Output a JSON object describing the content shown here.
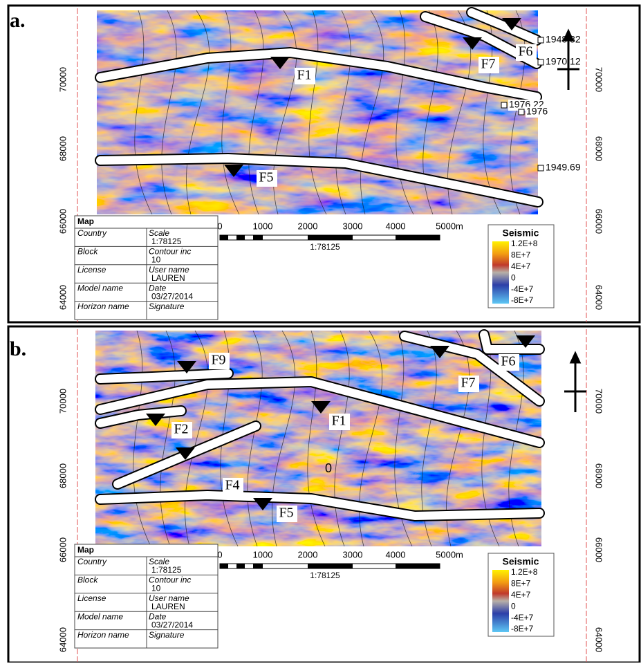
{
  "panels": [
    {
      "label": "a.",
      "faults": [
        "F1",
        "F5",
        "F6",
        "F7"
      ],
      "well_labels": [
        "1948.32",
        "1970.12",
        "1976.22",
        "1976",
        "1949.69"
      ],
      "left_axis": [
        "70000",
        "68000",
        "66000",
        "64000"
      ],
      "right_axis": [
        "70000",
        "68000",
        "66000",
        "64000"
      ],
      "map_table": {
        "header": "Map",
        "rows": [
          {
            "key": "Country",
            "field": "Scale",
            "value": "1:78125"
          },
          {
            "key": "Block",
            "field": "Contour inc",
            "value": "10"
          },
          {
            "key": "License",
            "field": "User name",
            "value": "LAUREN"
          },
          {
            "key": "Model name",
            "field": "Date",
            "value": "03/27/2014"
          },
          {
            "key": "Horizon name",
            "field": "Signature"
          }
        ]
      },
      "scale_bar": {
        "ticks": [
          "0",
          "1000",
          "2000",
          "3000",
          "4000",
          "5000m"
        ],
        "ratio": "1:78125"
      },
      "legend": {
        "title": "Seismic",
        "ticks": [
          "1.2E+8",
          "8E+7",
          "4E+7",
          "0",
          "-4E+7",
          "-8E+7"
        ]
      }
    },
    {
      "label": "b.",
      "faults": [
        "F9",
        "F2",
        "F4",
        "F1",
        "F5",
        "F6",
        "F7"
      ],
      "contour_label": "0",
      "left_axis": [
        "70000",
        "68000",
        "66000",
        "64000"
      ],
      "right_axis": [
        "70000",
        "68000",
        "66000",
        "64000"
      ],
      "map_table": {
        "header": "Map",
        "rows": [
          {
            "key": "Country",
            "field": "Scale",
            "value": "1:78125"
          },
          {
            "key": "Block",
            "field": "Contour inc",
            "value": "10"
          },
          {
            "key": "License",
            "field": "User name",
            "value": "LAUREN"
          },
          {
            "key": "Model name",
            "field": "Date",
            "value": "03/27/2014"
          },
          {
            "key": "Horizon name",
            "field": "Signature"
          }
        ]
      },
      "scale_bar": {
        "ticks": [
          "0",
          "1000",
          "2000",
          "3000",
          "4000",
          "5000m"
        ],
        "ratio": "1:78125"
      },
      "legend": {
        "title": "Seismic",
        "ticks": [
          "1.2E+8",
          "8E+7",
          "4E+7",
          "0",
          "-4E+7",
          "-8E+7"
        ]
      }
    }
  ]
}
